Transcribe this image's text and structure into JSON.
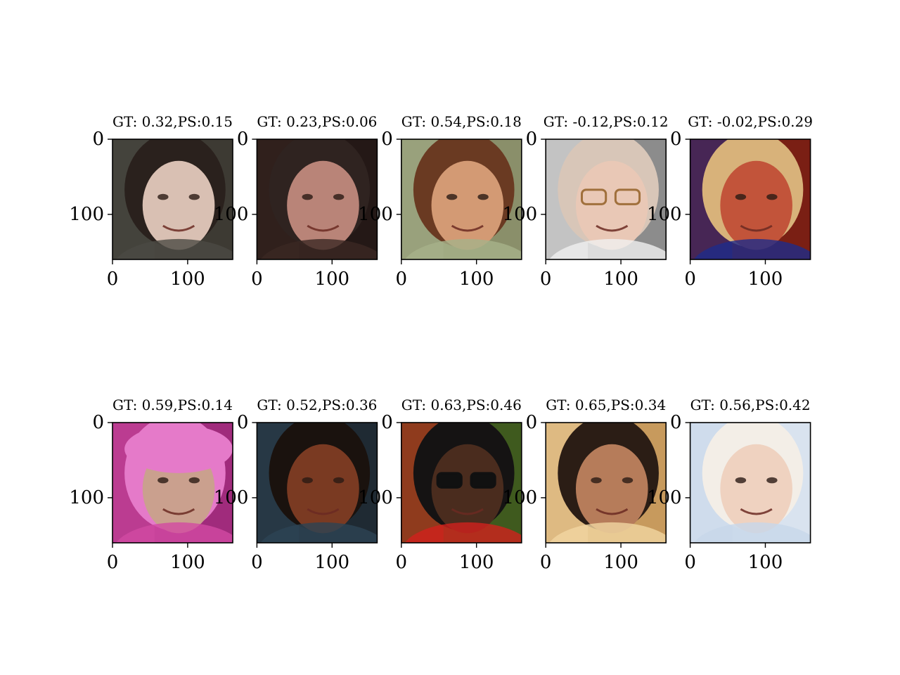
{
  "figure": {
    "axis_ticks": {
      "x": [
        "0",
        "100"
      ],
      "y": [
        "0",
        "100"
      ]
    },
    "panels": [
      {
        "title": "GT: 0.32,PS:0.15",
        "gt": 0.32,
        "ps": 0.15,
        "image": "face-young-woman-dark-hair-smiling",
        "bg": "#3d3a33",
        "skin": "#d9c0b3",
        "hair": "#2a211d",
        "accent": "#4b4a44"
      },
      {
        "title": "GT: 0.23,PS:0.06",
        "gt": 0.23,
        "ps": 0.06,
        "image": "face-blurry-woman-dark-hair",
        "bg": "#241816",
        "skin": "#b98478",
        "hair": "#2f2320",
        "accent": "#3b2823"
      },
      {
        "title": "GT: 0.54,PS:0.18",
        "gt": 0.54,
        "ps": 0.18,
        "image": "face-woman-brown-hair-noisy",
        "bg": "#8a8f6a",
        "skin": "#d39a74",
        "hair": "#6a3a22",
        "accent": "#a6b18a"
      },
      {
        "title": "GT: -0.12,PS:0.12",
        "gt": -0.12,
        "ps": 0.12,
        "image": "face-bald-man-glasses",
        "bg": "#8c8c8c",
        "skin": "#e9c8b6",
        "hair": "#d8c6b8",
        "accent": "#f0f0f0"
      },
      {
        "title": "GT: -0.02,PS:0.29",
        "gt": -0.02,
        "ps": 0.29,
        "image": "face-man-headset-red-background",
        "bg": "#7a1f14",
        "skin": "#c2543a",
        "hair": "#d8b27a",
        "accent": "#1e2c8a"
      },
      {
        "title": "GT: 0.59,PS:0.14",
        "gt": 0.59,
        "ps": 0.14,
        "image": "face-woman-pink-cap",
        "bg": "#a02b7c",
        "skin": "#caa08e",
        "hair": "#e57ac9",
        "accent": "#d24aa2"
      },
      {
        "title": "GT: 0.52,PS:0.36",
        "gt": 0.52,
        "ps": 0.36,
        "image": "face-man-bald-dark-skin",
        "bg": "#1f2a33",
        "skin": "#7a3a22",
        "hair": "#1a120e",
        "accent": "#2d4354"
      },
      {
        "title": "GT: 0.63,PS:0.46",
        "gt": 0.63,
        "ps": 0.46,
        "image": "face-man-sunglasses",
        "bg": "#3f5a1e",
        "skin": "#4a2c1e",
        "hair": "#151313",
        "accent": "#d1221d"
      },
      {
        "title": "GT: 0.65,PS:0.34",
        "gt": 0.65,
        "ps": 0.34,
        "image": "face-motion-blurred-smiling",
        "bg": "#c79a5d",
        "skin": "#b67c5a",
        "hair": "#2b1d15",
        "accent": "#f1d6a1"
      },
      {
        "title": "GT: 0.56,PS:0.42",
        "gt": 0.56,
        "ps": 0.42,
        "image": "face-older-man-white-hair",
        "bg": "#d9e3ef",
        "skin": "#efd2c0",
        "hair": "#f3eee7",
        "accent": "#c7d7ea"
      }
    ]
  }
}
